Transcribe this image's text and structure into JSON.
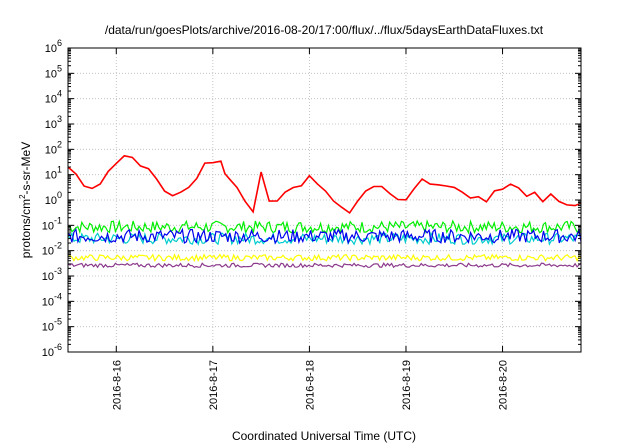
{
  "chart_data": {
    "type": "line",
    "title": "/data/run/goesPlots/archive/2016-08-20/17:00/flux/../flux/5daysEarthDataFluxes.txt",
    "xlabel": "Coordinated Universal Time (UTC)",
    "ylabel": {
      "base": "protons/cm",
      "sup": "2",
      "rest": "-s-sr-MeV"
    },
    "y_scale": "log",
    "ylim_exponent": [
      -6,
      6
    ],
    "y_tick_exponents": [
      -6,
      -5,
      -4,
      -3,
      -2,
      -1,
      0,
      1,
      2,
      3,
      4,
      5,
      6
    ],
    "y_tick_base": "10",
    "xlim": [
      "2016-08-15 12:00",
      "2016-08-20 19:30"
    ],
    "x_tick_labels": [
      "2016-8-16",
      "2016-8-17",
      "2016-8-18",
      "2016-8-19",
      "2016-8-20"
    ],
    "x_tick_times": [
      "2016-08-16 00:00",
      "2016-08-17 00:00",
      "2016-08-18 00:00",
      "2016-08-19 00:00",
      "2016-08-20 00:00"
    ],
    "grid": true,
    "series": [
      {
        "color": "#ff0000",
        "style": "line",
        "x": [
          "2016-08-15 12:00",
          "2016-08-15 14:00",
          "2016-08-15 16:00",
          "2016-08-15 18:00",
          "2016-08-15 20:00",
          "2016-08-15 22:00",
          "2016-08-16 00:00",
          "2016-08-16 02:00",
          "2016-08-16 04:00",
          "2016-08-16 06:00",
          "2016-08-16 08:00",
          "2016-08-16 10:00",
          "2016-08-16 12:00",
          "2016-08-16 14:00",
          "2016-08-16 16:00",
          "2016-08-16 18:00",
          "2016-08-16 20:00",
          "2016-08-16 22:00",
          "2016-08-17 00:00",
          "2016-08-17 02:00",
          "2016-08-17 03:00",
          "2016-08-17 04:00",
          "2016-08-17 06:00",
          "2016-08-17 08:00",
          "2016-08-17 10:00",
          "2016-08-17 12:00",
          "2016-08-17 14:00",
          "2016-08-17 16:00",
          "2016-08-17 18:00",
          "2016-08-17 20:00",
          "2016-08-17 22:00",
          "2016-08-18 00:00",
          "2016-08-18 02:00",
          "2016-08-18 04:00",
          "2016-08-18 06:00",
          "2016-08-18 08:00",
          "2016-08-18 10:00",
          "2016-08-18 12:00",
          "2016-08-18 14:00",
          "2016-08-18 16:00",
          "2016-08-18 18:00",
          "2016-08-18 20:00",
          "2016-08-18 22:00",
          "2016-08-19 00:00",
          "2016-08-19 02:00",
          "2016-08-19 04:00",
          "2016-08-19 06:00",
          "2016-08-19 08:00",
          "2016-08-19 10:00",
          "2016-08-19 12:00",
          "2016-08-19 14:00",
          "2016-08-19 16:00",
          "2016-08-19 18:00",
          "2016-08-19 20:00",
          "2016-08-19 22:00",
          "2016-08-20 00:00",
          "2016-08-20 02:00",
          "2016-08-20 04:00",
          "2016-08-20 06:00",
          "2016-08-20 08:00",
          "2016-08-20 10:00",
          "2016-08-20 12:00",
          "2016-08-20 14:00",
          "2016-08-20 16:00",
          "2016-08-20 18:00",
          "2016-08-20 19:30"
        ],
        "y": [
          20,
          10,
          4,
          2.5,
          5,
          12,
          30,
          55,
          45,
          25,
          15,
          8,
          2,
          1.6,
          2,
          3,
          8,
          25,
          35,
          30,
          12,
          7,
          3,
          1,
          0.3,
          15,
          0.8,
          1,
          2,
          3,
          4,
          8,
          5,
          2,
          1,
          0.5,
          0.3,
          1,
          2,
          4,
          3,
          2,
          1,
          1,
          3,
          6,
          5,
          3.5,
          4,
          3,
          2,
          1.3,
          1.2,
          1,
          2,
          3,
          4,
          3,
          1.5,
          1.8,
          1,
          1.5,
          1,
          0.6,
          0.6,
          0.8
        ]
      }
    ],
    "bands": [
      {
        "color": "#00ee00",
        "low": 0.05,
        "high": 0.15
      },
      {
        "color": "#00cccc",
        "low": 0.018,
        "high": 0.05
      },
      {
        "color": "#0000ee",
        "low": 0.02,
        "high": 0.07
      },
      {
        "color": "#ffff00",
        "low": 0.004,
        "high": 0.007
      },
      {
        "color": "#8b3a8b",
        "low": 0.0022,
        "high": 0.0032
      }
    ]
  }
}
